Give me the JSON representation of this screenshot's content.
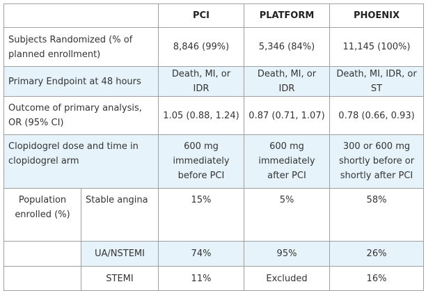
{
  "header": {
    "corner": "",
    "col1": "PCI",
    "col2": "PLATFORM",
    "col3": "PHOENIX"
  },
  "rows": {
    "subjects": {
      "label": "Subjects Randomized (% of planned enrollment)",
      "pci": "8,846 (99%)",
      "platform": "5,346 (84%)",
      "phoenix": "11,145 (100%)"
    },
    "endpoint": {
      "label": "Primary Endpoint at 48 hours",
      "pci": "Death, MI, or IDR",
      "platform": "Death, MI, or IDR",
      "phoenix": "Death, MI, IDR, or ST"
    },
    "outcome": {
      "label": "Outcome of primary analysis, OR (95% CI)",
      "pci": "1.05 (0.88, 1.24)",
      "platform": "0.87 (0.71, 1.07)",
      "phoenix": "0.78 (0.66, 0.93)"
    },
    "dose": {
      "label": "Clopidogrel dose and time in clopidogrel arm",
      "pci": "600 mg immediately before PCI",
      "platform": "600 mg immediately after PCI",
      "phoenix": "300 or 600 mg shortly before or shortly after PCI"
    }
  },
  "population": {
    "label": "Population enrolled (%)",
    "stable": {
      "label": "Stable angina",
      "pci": "15%",
      "platform": "5%",
      "phoenix": "58%"
    },
    "ua": {
      "label": "UA/NSTEMI",
      "pci": "74%",
      "platform": "95%",
      "phoenix": "26%"
    },
    "stemi": {
      "label": "STEMI",
      "pci": "11%",
      "platform": "Excluded",
      "phoenix": "16%"
    }
  }
}
